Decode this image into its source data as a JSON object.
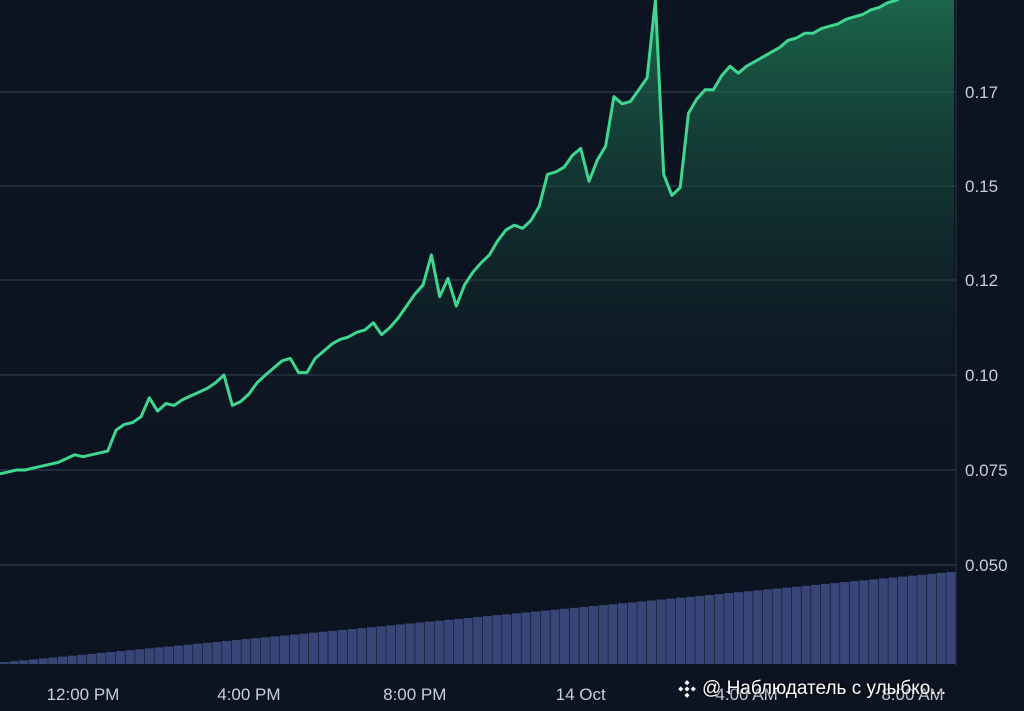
{
  "chart_data": {
    "type": "area",
    "series": [
      {
        "x": [
          0,
          0.2,
          0.4,
          0.6,
          0.8,
          1.0,
          1.2,
          1.4,
          1.6,
          1.8,
          2.0,
          2.2,
          2.4,
          2.6,
          2.8,
          3.0,
          3.2,
          3.4,
          3.6,
          3.8,
          4.0,
          4.2,
          4.4,
          4.6,
          4.8,
          5.0,
          5.2,
          5.4,
          5.6,
          5.8,
          6.0,
          6.2,
          6.4,
          6.6,
          6.8,
          7.0,
          7.2,
          7.4,
          7.6,
          7.8,
          8.0,
          8.2,
          8.4,
          8.6,
          8.8,
          9.0,
          9.2,
          9.4,
          9.6,
          9.8,
          10.0,
          10.2,
          10.4,
          10.6,
          10.8,
          11.0,
          11.2,
          11.4,
          11.6,
          11.8,
          12.0,
          12.2,
          12.4,
          12.6,
          12.8,
          13.0,
          13.2,
          13.4,
          13.6,
          13.8,
          14.0,
          14.2,
          14.4,
          14.6,
          14.8,
          15.0,
          15.2,
          15.4,
          15.6,
          15.8,
          16.0,
          16.2,
          16.4,
          16.6,
          16.8,
          17.0,
          17.2,
          17.4,
          17.6,
          17.8,
          18.0,
          18.2,
          18.4,
          18.6,
          18.8,
          19.0,
          19.2,
          19.4,
          19.6,
          19.8,
          20.0,
          20.2,
          20.4,
          20.6,
          20.8,
          21.0,
          21.2,
          21.4,
          21.6,
          21.8,
          22.0,
          22.2,
          22.4,
          22.6,
          22.8,
          23.0
        ],
        "y": [
          0.074,
          0.0745,
          0.075,
          0.075,
          0.0755,
          0.076,
          0.0765,
          0.077,
          0.078,
          0.079,
          0.0785,
          0.079,
          0.0795,
          0.08,
          0.0855,
          0.087,
          0.0875,
          0.089,
          0.094,
          0.0905,
          0.0925,
          0.092,
          0.0935,
          0.0945,
          0.0955,
          0.0965,
          0.098,
          0.1,
          0.092,
          0.093,
          0.095,
          0.098,
          0.1,
          0.1015,
          0.103,
          0.1035,
          0.1005,
          0.1005,
          0.1035,
          0.105,
          0.1065,
          0.1075,
          0.108,
          0.109,
          0.1095,
          0.111,
          0.1085,
          0.11,
          0.112,
          0.1145,
          0.117,
          0.119,
          0.128,
          0.1165,
          0.1205,
          0.1145,
          0.119,
          0.1225,
          0.1255,
          0.128,
          0.1325,
          0.136,
          0.1375,
          0.1365,
          0.139,
          0.1435,
          0.1525,
          0.153,
          0.154,
          0.1565,
          0.158,
          0.151,
          0.1555,
          0.1585,
          0.169,
          0.1675,
          0.168,
          0.1705,
          0.173,
          0.1895,
          0.1525,
          0.147,
          0.1495,
          0.1655,
          0.1685,
          0.1705,
          0.1705,
          0.1735,
          0.1755,
          0.174,
          0.1755,
          0.1765,
          0.1775,
          0.1785,
          0.1795,
          0.181,
          0.1815,
          0.1825,
          0.1825,
          0.1835,
          0.184,
          0.1845,
          0.1855,
          0.186,
          0.1865,
          0.1875,
          0.188,
          0.189,
          0.1895,
          0.1905,
          0.191,
          0.1915,
          0.192,
          0.1925,
          0.1925,
          0.193
        ],
        "color": "#3fd68f"
      }
    ],
    "volume": [
      2,
      3,
      4,
      5,
      6,
      7,
      8,
      9,
      10,
      11,
      12,
      13,
      14,
      15,
      16,
      17,
      18,
      19,
      20,
      21,
      22,
      23,
      24,
      25,
      26,
      27,
      28,
      29,
      30,
      31,
      32,
      33,
      34,
      35,
      36,
      37,
      38,
      39,
      40,
      41,
      42,
      43,
      44,
      45,
      46,
      47,
      48,
      49,
      50,
      51,
      52,
      53,
      54,
      55,
      56,
      57,
      58,
      59,
      60,
      61,
      62,
      63,
      64,
      65,
      66,
      67,
      68,
      69,
      70,
      71,
      72,
      73,
      74,
      75,
      76,
      77,
      78,
      79,
      80,
      81,
      82,
      83,
      84,
      85,
      86,
      87,
      88,
      89,
      90,
      91,
      92,
      93,
      94,
      95,
      96,
      97,
      98,
      99,
      100
    ],
    "x_ticks": [
      {
        "x": 2.0,
        "label": "12:00 PM"
      },
      {
        "x": 6.0,
        "label": "4:00 PM"
      },
      {
        "x": 10.0,
        "label": "8:00 PM"
      },
      {
        "x": 14.0,
        "label": "14 Oct"
      },
      {
        "x": 18.0,
        "label": "4:00 AM"
      },
      {
        "x": 22.0,
        "label": "8:00 AM"
      }
    ],
    "y_ticks": [
      0.17,
      0.15,
      0.12,
      0.1,
      0.075,
      0.05
    ],
    "y_tick_labels": [
      "0.17",
      "0.15",
      "0.12",
      "0.10",
      "0.075",
      "0.050"
    ],
    "grid": true,
    "colors": {
      "background": "#0d1421",
      "line": "#3fd68f",
      "area_top": "#1f7a55",
      "grid": "#2a3444",
      "volume": "#3a4577"
    }
  },
  "watermark": {
    "text": "@ Наблюдатель с улыбко...",
    "icon": "binance-logo-icon"
  }
}
